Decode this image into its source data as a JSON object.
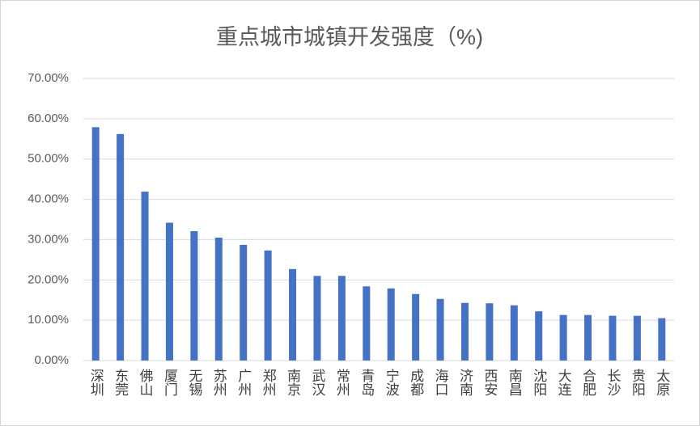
{
  "chart_data": {
    "type": "bar",
    "title": "重点城市城镇开发强度（%)",
    "categories": [
      "深圳",
      "东莞",
      "佛山",
      "厦门",
      "无锡",
      "苏州",
      "广州",
      "郑州",
      "南京",
      "武汉",
      "常州",
      "青岛",
      "宁波",
      "成都",
      "海口",
      "济南",
      "西安",
      "南昌",
      "沈阳",
      "大连",
      "合肥",
      "长沙",
      "贵阳",
      "太原"
    ],
    "values": [
      57.9,
      56.2,
      41.9,
      34.2,
      32.1,
      30.5,
      28.7,
      27.3,
      22.7,
      21.0,
      21.0,
      18.4,
      17.9,
      16.5,
      15.3,
      14.3,
      14.2,
      13.7,
      12.2,
      11.3,
      11.3,
      11.1,
      11.1,
      10.5
    ],
    "color": "#4472c4",
    "ylim": [
      0,
      70
    ],
    "yticks": [
      {
        "value": 0,
        "label": "0.00%"
      },
      {
        "value": 10,
        "label": "10.00%"
      },
      {
        "value": 20,
        "label": "20.00%"
      },
      {
        "value": 30,
        "label": "30.00%"
      },
      {
        "value": 40,
        "label": "40.00%"
      },
      {
        "value": 50,
        "label": "50.00%"
      },
      {
        "value": 60,
        "label": "60.00%"
      },
      {
        "value": 70,
        "label": "70.00%"
      }
    ],
    "grid": true
  }
}
